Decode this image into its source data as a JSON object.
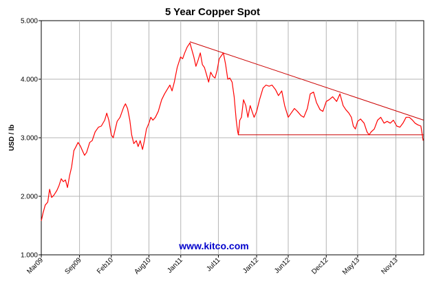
{
  "chart_data": {
    "type": "line",
    "title": "5 Year Copper Spot",
    "ylabel": "USD / lb",
    "xlabel": "",
    "watermark": "www.kitco.com",
    "ylim": [
      1.0,
      5.0
    ],
    "xlim": [
      "2009-03-01",
      "2014-03-15"
    ],
    "y_ticks": [
      "1.000",
      "2.000",
      "3.000",
      "4.000",
      "5.000"
    ],
    "y_tick_values": [
      1.0,
      2.0,
      3.0,
      4.0,
      5.0
    ],
    "x_ticks": [
      {
        "label": "Mar09",
        "date": "2009-03-01"
      },
      {
        "label": "Sep09",
        "date": "2009-09-01"
      },
      {
        "label": "Feb10",
        "date": "2010-02-01"
      },
      {
        "label": "Aug10",
        "date": "2010-08-01"
      },
      {
        "label": "Jan11",
        "date": "2011-01-01"
      },
      {
        "label": "Jul11",
        "date": "2011-07-01"
      },
      {
        "label": "Jan12",
        "date": "2012-01-01"
      },
      {
        "label": "Jun12",
        "date": "2012-06-01"
      },
      {
        "label": "Dec12",
        "date": "2012-12-01"
      },
      {
        "label": "May13",
        "date": "2013-05-01"
      },
      {
        "label": "Nov13",
        "date": "2013-11-01"
      }
    ],
    "grid": true,
    "series": [
      {
        "color": "#ff0000",
        "points": [
          [
            "2009-03-01",
            1.58
          ],
          [
            "2009-03-10",
            1.72
          ],
          [
            "2009-03-20",
            1.85
          ],
          [
            "2009-04-01",
            1.9
          ],
          [
            "2009-04-10",
            2.12
          ],
          [
            "2009-04-20",
            1.98
          ],
          [
            "2009-05-01",
            2.02
          ],
          [
            "2009-05-15",
            2.1
          ],
          [
            "2009-05-25",
            2.18
          ],
          [
            "2009-06-05",
            2.3
          ],
          [
            "2009-06-15",
            2.25
          ],
          [
            "2009-06-25",
            2.28
          ],
          [
            "2009-07-05",
            2.15
          ],
          [
            "2009-07-15",
            2.35
          ],
          [
            "2009-07-25",
            2.5
          ],
          [
            "2009-08-05",
            2.78
          ],
          [
            "2009-08-15",
            2.85
          ],
          [
            "2009-08-25",
            2.92
          ],
          [
            "2009-09-05",
            2.86
          ],
          [
            "2009-09-15",
            2.78
          ],
          [
            "2009-09-25",
            2.7
          ],
          [
            "2009-10-05",
            2.75
          ],
          [
            "2009-10-20",
            2.92
          ],
          [
            "2009-11-01",
            2.95
          ],
          [
            "2009-11-15",
            3.1
          ],
          [
            "2009-12-01",
            3.18
          ],
          [
            "2009-12-15",
            3.2
          ],
          [
            "2009-12-31",
            3.3
          ],
          [
            "2010-01-10",
            3.42
          ],
          [
            "2010-01-20",
            3.3
          ],
          [
            "2010-02-01",
            3.05
          ],
          [
            "2010-02-10",
            3.0
          ],
          [
            "2010-02-20",
            3.15
          ],
          [
            "2010-03-01",
            3.28
          ],
          [
            "2010-03-15",
            3.35
          ],
          [
            "2010-04-01",
            3.52
          ],
          [
            "2010-04-10",
            3.58
          ],
          [
            "2010-04-20",
            3.5
          ],
          [
            "2010-05-01",
            3.3
          ],
          [
            "2010-05-10",
            3.05
          ],
          [
            "2010-05-20",
            2.9
          ],
          [
            "2010-06-01",
            2.95
          ],
          [
            "2010-06-10",
            2.85
          ],
          [
            "2010-06-20",
            2.95
          ],
          [
            "2010-07-01",
            2.8
          ],
          [
            "2010-07-10",
            2.95
          ],
          [
            "2010-07-20",
            3.15
          ],
          [
            "2010-08-01",
            3.25
          ],
          [
            "2010-08-10",
            3.35
          ],
          [
            "2010-08-20",
            3.3
          ],
          [
            "2010-09-01",
            3.35
          ],
          [
            "2010-09-15",
            3.45
          ],
          [
            "2010-10-01",
            3.65
          ],
          [
            "2010-10-15",
            3.75
          ],
          [
            "2010-11-01",
            3.85
          ],
          [
            "2010-11-10",
            3.9
          ],
          [
            "2010-11-20",
            3.8
          ],
          [
            "2010-12-01",
            3.95
          ],
          [
            "2010-12-15",
            4.2
          ],
          [
            "2010-12-31",
            4.38
          ],
          [
            "2011-01-10",
            4.35
          ],
          [
            "2011-01-20",
            4.45
          ],
          [
            "2011-02-01",
            4.55
          ],
          [
            "2011-02-14",
            4.62
          ],
          [
            "2011-02-25",
            4.48
          ],
          [
            "2011-03-05",
            4.38
          ],
          [
            "2011-03-15",
            4.22
          ],
          [
            "2011-03-25",
            4.32
          ],
          [
            "2011-04-05",
            4.45
          ],
          [
            "2011-04-15",
            4.25
          ],
          [
            "2011-04-25",
            4.2
          ],
          [
            "2011-05-05",
            4.08
          ],
          [
            "2011-05-15",
            3.95
          ],
          [
            "2011-05-25",
            4.12
          ],
          [
            "2011-06-05",
            4.05
          ],
          [
            "2011-06-15",
            4.02
          ],
          [
            "2011-06-25",
            4.15
          ],
          [
            "2011-07-05",
            4.35
          ],
          [
            "2011-07-15",
            4.4
          ],
          [
            "2011-07-25",
            4.45
          ],
          [
            "2011-08-05",
            4.25
          ],
          [
            "2011-08-15",
            4.0
          ],
          [
            "2011-08-25",
            4.02
          ],
          [
            "2011-09-05",
            3.95
          ],
          [
            "2011-09-15",
            3.7
          ],
          [
            "2011-09-25",
            3.3
          ],
          [
            "2011-10-01",
            3.12
          ],
          [
            "2011-10-05",
            3.05
          ],
          [
            "2011-10-12",
            3.3
          ],
          [
            "2011-10-20",
            3.35
          ],
          [
            "2011-10-30",
            3.65
          ],
          [
            "2011-11-10",
            3.55
          ],
          [
            "2011-11-20",
            3.35
          ],
          [
            "2011-12-01",
            3.55
          ],
          [
            "2011-12-10",
            3.45
          ],
          [
            "2011-12-20",
            3.35
          ],
          [
            "2012-01-01",
            3.45
          ],
          [
            "2012-01-15",
            3.65
          ],
          [
            "2012-02-01",
            3.85
          ],
          [
            "2012-02-15",
            3.9
          ],
          [
            "2012-03-01",
            3.88
          ],
          [
            "2012-03-15",
            3.9
          ],
          [
            "2012-04-01",
            3.82
          ],
          [
            "2012-04-15",
            3.72
          ],
          [
            "2012-05-01",
            3.8
          ],
          [
            "2012-05-15",
            3.55
          ],
          [
            "2012-06-01",
            3.35
          ],
          [
            "2012-06-15",
            3.42
          ],
          [
            "2012-07-01",
            3.5
          ],
          [
            "2012-07-15",
            3.45
          ],
          [
            "2012-08-01",
            3.38
          ],
          [
            "2012-08-15",
            3.35
          ],
          [
            "2012-09-01",
            3.5
          ],
          [
            "2012-09-15",
            3.75
          ],
          [
            "2012-10-01",
            3.78
          ],
          [
            "2012-10-15",
            3.6
          ],
          [
            "2012-11-01",
            3.48
          ],
          [
            "2012-11-15",
            3.45
          ],
          [
            "2012-12-01",
            3.62
          ],
          [
            "2012-12-15",
            3.65
          ],
          [
            "2013-01-01",
            3.7
          ],
          [
            "2013-01-20",
            3.62
          ],
          [
            "2013-02-05",
            3.75
          ],
          [
            "2013-02-20",
            3.55
          ],
          [
            "2013-03-05",
            3.48
          ],
          [
            "2013-03-20",
            3.42
          ],
          [
            "2013-04-01",
            3.35
          ],
          [
            "2013-04-10",
            3.2
          ],
          [
            "2013-04-20",
            3.15
          ],
          [
            "2013-05-01",
            3.28
          ],
          [
            "2013-05-15",
            3.32
          ],
          [
            "2013-06-01",
            3.25
          ],
          [
            "2013-06-15",
            3.1
          ],
          [
            "2013-06-25",
            3.05
          ],
          [
            "2013-07-05",
            3.1
          ],
          [
            "2013-07-20",
            3.15
          ],
          [
            "2013-08-05",
            3.3
          ],
          [
            "2013-08-20",
            3.35
          ],
          [
            "2013-09-05",
            3.25
          ],
          [
            "2013-09-20",
            3.28
          ],
          [
            "2013-10-05",
            3.25
          ],
          [
            "2013-10-20",
            3.3
          ],
          [
            "2013-11-05",
            3.2
          ],
          [
            "2013-11-20",
            3.18
          ],
          [
            "2013-12-05",
            3.25
          ],
          [
            "2013-12-20",
            3.35
          ],
          [
            "2014-01-05",
            3.35
          ],
          [
            "2014-01-20",
            3.3
          ],
          [
            "2014-02-01",
            3.25
          ],
          [
            "2014-02-15",
            3.22
          ],
          [
            "2014-03-01",
            3.2
          ],
          [
            "2014-03-08",
            3.05
          ],
          [
            "2014-03-12",
            2.95
          ]
        ]
      }
    ],
    "trend_lines": [
      {
        "color": "#cc0000",
        "from": [
          "2011-02-14",
          4.64
        ],
        "to": [
          "2014-03-15",
          3.3
        ]
      },
      {
        "color": "#cc0000",
        "from": [
          "2011-10-05",
          3.05
        ],
        "to": [
          "2014-03-15",
          3.05
        ]
      }
    ]
  }
}
